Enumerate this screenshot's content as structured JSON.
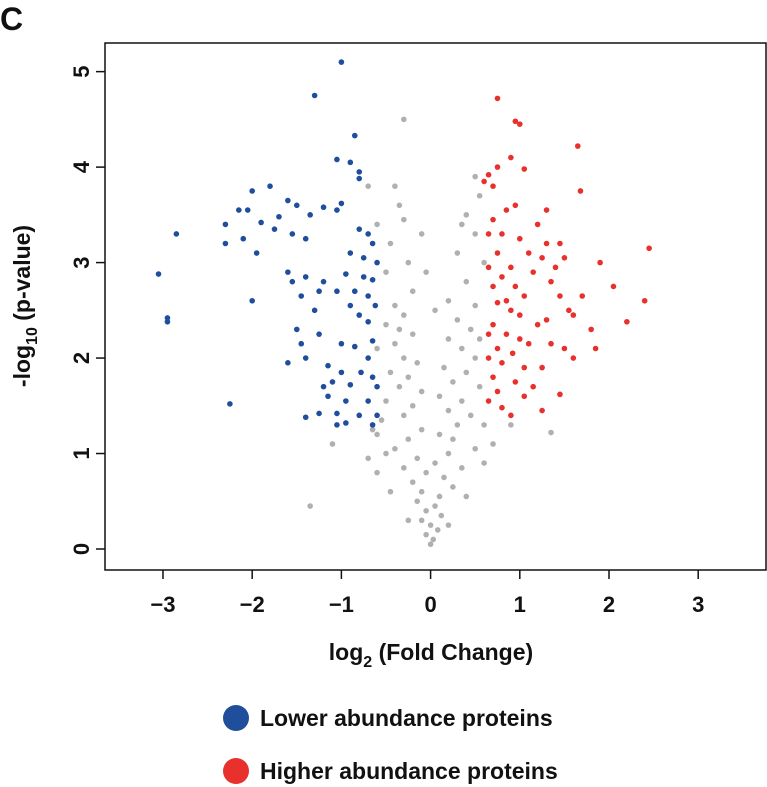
{
  "chart_data": {
    "type": "scatter",
    "panel_label": "C",
    "x_label": {
      "text": "log",
      "sub": "2",
      "rest": " (Fold Change)"
    },
    "y_label": {
      "text": "-log",
      "sub": "10",
      "rest": " (p-value)"
    },
    "xlim": [
      -3.65,
      3.76
    ],
    "ylim": [
      -0.22,
      5.3
    ],
    "xticks": [
      {
        "value": -3,
        "label": "−3"
      },
      {
        "value": -2,
        "label": "−2"
      },
      {
        "value": -1,
        "label": "−1"
      },
      0,
      1,
      2,
      3
    ],
    "yticks": [
      0,
      1,
      2,
      3,
      4,
      5
    ],
    "legend": "bottom",
    "series": [
      {
        "color": "#b0b0b0",
        "x": [
          -0.3,
          0.5,
          -0.4,
          -0.3,
          0.35,
          -0.1,
          0.5,
          -0.45,
          0.3,
          -0.25,
          0.6,
          -0.5,
          0.4,
          -0.2,
          0.2,
          -0.4,
          0.5,
          -0.3,
          0.3,
          -0.5,
          0.45,
          -0.2,
          0.2,
          -0.4,
          0.35,
          -0.3,
          0.5,
          -0.15,
          0.15,
          -0.45,
          0.4,
          -0.25,
          0.25,
          -0.35,
          0.55,
          -0.1,
          0.1,
          -0.5,
          0.35,
          -0.2,
          0.2,
          -0.3,
          0.45,
          -0.55,
          0.3,
          -0.1,
          0.1,
          -0.25,
          0.25,
          -0.4,
          0.2,
          -0.15,
          0.05,
          -0.3,
          0.35,
          -0.05,
          0.15,
          -0.2,
          0.25,
          -0.1,
          0.1,
          -0.15,
          0.05,
          -0.05,
          0.12,
          -0.1,
          0.0,
          0.08,
          -0.05,
          0.03,
          0.0,
          -1.1,
          -0.6,
          -1.35,
          1.35,
          0.9,
          -0.6,
          0.6,
          -0.5,
          0.5,
          -0.7,
          0.55,
          -0.35,
          0.4,
          -0.6,
          -0.05,
          0.05,
          -0.35,
          0.55,
          -0.6,
          0.6,
          -0.65,
          -0.7,
          0.7,
          -0.45,
          0.4,
          -0.25,
          0.2
        ],
        "y": [
          4.5,
          3.9,
          3.8,
          3.45,
          3.4,
          3.3,
          3.3,
          3.2,
          3.1,
          3.0,
          3.0,
          2.9,
          2.8,
          2.7,
          2.6,
          2.55,
          2.55,
          2.45,
          2.4,
          2.35,
          2.3,
          2.25,
          2.2,
          2.15,
          2.1,
          2.0,
          2.0,
          1.95,
          1.9,
          1.85,
          1.85,
          1.8,
          1.75,
          1.7,
          1.7,
          1.65,
          1.6,
          1.55,
          1.55,
          1.5,
          1.45,
          1.4,
          1.4,
          1.35,
          1.3,
          1.25,
          1.2,
          1.15,
          1.15,
          1.05,
          1.0,
          0.95,
          0.9,
          0.85,
          0.85,
          0.8,
          0.75,
          0.7,
          0.65,
          0.6,
          0.55,
          0.5,
          0.45,
          0.4,
          0.35,
          0.3,
          0.25,
          0.2,
          0.15,
          0.1,
          0.05,
          1.1,
          1.2,
          0.45,
          1.22,
          1.3,
          0.8,
          0.9,
          1.0,
          1.05,
          3.8,
          3.7,
          3.6,
          3.5,
          3.4,
          2.9,
          2.5,
          2.3,
          2.2,
          2.1,
          1.3,
          1.25,
          0.95,
          1.1,
          0.6,
          0.55,
          0.3,
          0.25
        ]
      },
      {
        "name": "Lower abundance proteins",
        "color": "#1f4e9c",
        "x": [
          -1.0,
          -1.3,
          -0.85,
          -1.05,
          -0.9,
          -0.8,
          -0.8,
          -1.8,
          -2.0,
          -1.6,
          -2.15,
          -2.05,
          -1.7,
          -1.5,
          -1.2,
          -1.35,
          -1.05,
          -1.0,
          -2.3,
          -1.9,
          -1.75,
          -1.55,
          -2.1,
          -2.3,
          -2.85,
          -1.95,
          -1.4,
          -0.8,
          -0.7,
          -0.65,
          -0.9,
          -0.75,
          -0.6,
          -1.6,
          -1.4,
          -1.55,
          -1.2,
          -0.95,
          -0.75,
          -0.65,
          -3.05,
          -1.05,
          -1.25,
          -1.45,
          -0.85,
          -0.7,
          -2.0,
          -0.9,
          -0.62,
          -1.3,
          -0.8,
          -2.95,
          -2.95,
          -0.7,
          -1.5,
          -1.25,
          -0.65,
          -0.85,
          -1.45,
          -1.0,
          -1.4,
          -1.6,
          -0.7,
          -1.15,
          -1.0,
          -0.78,
          -0.65,
          -1.1,
          -1.2,
          -0.9,
          -0.6,
          -1.15,
          -0.95,
          -0.7,
          -1.05,
          -0.8,
          -0.6,
          -2.25,
          -1.25,
          -1.4,
          -0.95,
          -1.05,
          -0.65
        ],
        "y": [
          5.1,
          4.75,
          4.33,
          4.08,
          4.05,
          3.95,
          3.88,
          3.8,
          3.75,
          3.65,
          3.55,
          3.55,
          3.48,
          3.6,
          3.58,
          3.5,
          3.55,
          3.62,
          3.4,
          3.42,
          3.35,
          3.3,
          3.25,
          3.2,
          3.3,
          3.1,
          3.25,
          3.35,
          3.3,
          3.2,
          3.1,
          3.05,
          3.0,
          2.9,
          2.85,
          2.8,
          2.8,
          2.88,
          2.85,
          2.82,
          2.88,
          2.7,
          2.7,
          2.65,
          2.7,
          2.65,
          2.6,
          2.55,
          2.55,
          2.5,
          2.45,
          2.42,
          2.38,
          2.38,
          2.3,
          2.25,
          2.18,
          2.12,
          2.15,
          2.15,
          2.0,
          1.95,
          2.0,
          1.92,
          1.85,
          1.85,
          1.8,
          1.75,
          1.7,
          1.72,
          1.7,
          1.6,
          1.55,
          1.55,
          1.42,
          1.4,
          1.4,
          1.52,
          1.42,
          1.38,
          1.32,
          1.3,
          1.3
        ]
      },
      {
        "name": "Higher abundance proteins",
        "color": "#e8302d",
        "x": [
          0.75,
          0.95,
          1.0,
          1.65,
          0.9,
          0.75,
          1.05,
          0.65,
          0.6,
          0.7,
          1.68,
          0.95,
          0.85,
          1.3,
          0.7,
          1.2,
          0.8,
          1.0,
          2.45,
          1.3,
          1.45,
          0.65,
          0.75,
          1.1,
          1.25,
          1.5,
          0.9,
          1.4,
          1.9,
          0.65,
          0.8,
          1.15,
          1.35,
          0.95,
          2.05,
          0.7,
          1.45,
          1.7,
          1.05,
          0.85,
          0.75,
          2.4,
          1.55,
          1.6,
          0.9,
          1.0,
          1.3,
          0.7,
          1.8,
          2.2,
          1.2,
          0.85,
          0.65,
          1.0,
          1.1,
          1.35,
          0.75,
          0.92,
          1.5,
          1.85,
          1.6,
          0.65,
          0.8,
          1.05,
          1.25,
          0.7,
          0.95,
          1.15,
          0.75,
          1.05,
          1.45,
          0.65,
          0.8,
          1.25,
          0.9
        ],
        "y": [
          4.72,
          4.48,
          4.45,
          4.22,
          4.1,
          4.0,
          3.98,
          3.92,
          3.85,
          3.8,
          3.75,
          3.6,
          3.55,
          3.55,
          3.45,
          3.4,
          3.3,
          3.25,
          3.15,
          3.2,
          3.2,
          3.3,
          3.1,
          3.1,
          3.05,
          3.05,
          2.95,
          2.95,
          3.0,
          2.95,
          2.85,
          2.9,
          2.8,
          2.75,
          2.75,
          2.75,
          2.65,
          2.65,
          2.65,
          2.6,
          2.58,
          2.6,
          2.5,
          2.45,
          2.5,
          2.45,
          2.4,
          2.35,
          2.3,
          2.38,
          2.35,
          2.25,
          2.25,
          2.2,
          2.15,
          2.15,
          2.1,
          2.05,
          2.1,
          2.1,
          2.0,
          2.0,
          1.95,
          1.9,
          1.9,
          1.8,
          1.75,
          1.7,
          1.65,
          1.6,
          1.62,
          1.55,
          1.48,
          1.45,
          1.4
        ]
      }
    ]
  }
}
